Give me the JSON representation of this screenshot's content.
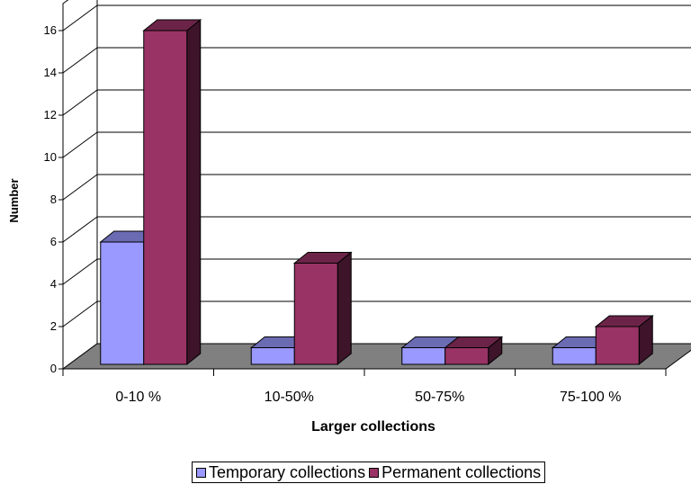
{
  "chart_data": {
    "type": "bar",
    "categories": [
      "0-10 %",
      "10-50%",
      "50-75%",
      "75-100 %"
    ],
    "series": [
      {
        "name": "Temporary collections",
        "values": [
          6,
          1,
          1,
          1
        ],
        "color": "#9999ff"
      },
      {
        "name": "Permanent collections",
        "values": [
          16,
          5,
          1,
          2
        ],
        "color": "#993366"
      }
    ],
    "xlabel": "Larger collections",
    "ylabel": "Number",
    "ylim": [
      0,
      16
    ],
    "yticks": [
      "0",
      "2",
      "4",
      "6",
      "8",
      "10",
      "12",
      "14",
      "16"
    ],
    "grid": true,
    "legend": "bottom",
    "three_d": true
  }
}
